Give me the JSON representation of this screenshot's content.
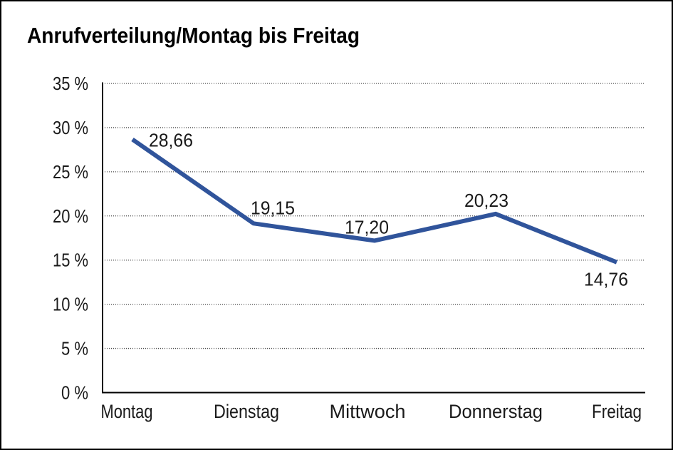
{
  "chart_data": {
    "type": "line",
    "title": "Anrufverteilung/Montag bis Freitag",
    "categories": [
      "Montag",
      "Dienstag",
      "Mittwoch",
      "Donnerstag",
      "Freitag"
    ],
    "values": [
      28.66,
      19.15,
      17.2,
      20.23,
      14.76
    ],
    "value_labels": [
      "28,66",
      "19,15",
      "17,20",
      "20,23",
      "14,76"
    ],
    "y_axis": {
      "ylim": [
        0,
        35
      ],
      "tick_values": [
        0,
        5,
        10,
        15,
        20,
        25,
        30,
        35
      ],
      "tick_labels": [
        "0 %",
        "5 %",
        "10 %",
        "15 %",
        "20 %",
        "25 %",
        "30 %",
        "35 %"
      ]
    },
    "legend": "none",
    "grid": "horizontal-dotted",
    "line_color": "#30549B",
    "grid_color": "#4A4A4A",
    "axis_color": "#000000",
    "text_color": "#1A1A1A",
    "background": "#FFFFFF",
    "border_color": "#000000"
  }
}
